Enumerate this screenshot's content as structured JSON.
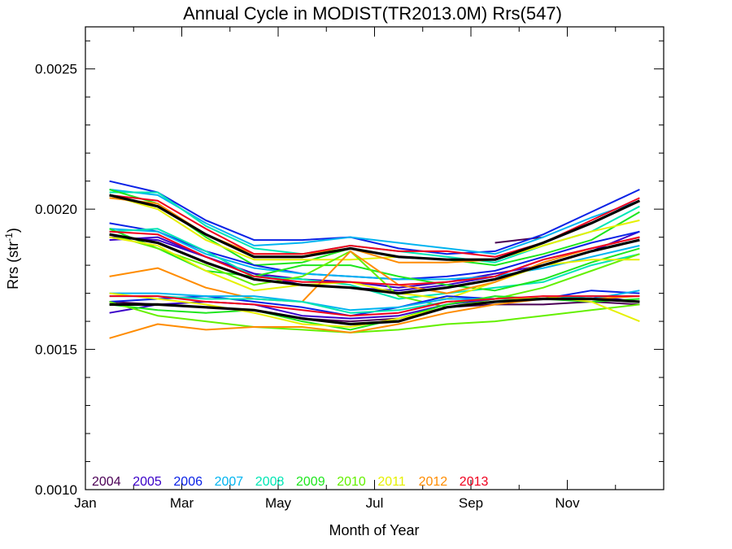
{
  "chart_data": {
    "type": "line",
    "title": "Annual Cycle in MODIST(TR2013.0M) Rrs(547)",
    "xlabel": "Month of Year",
    "ylabel": {
      "base": "Rrs (str",
      "sup": "-1",
      "close": ")"
    },
    "x_months": [
      1.5,
      2.5,
      3.5,
      4.5,
      5.5,
      6.5,
      7.5,
      8.5,
      9.5,
      10.5,
      11.5,
      12.5
    ],
    "xlim": [
      1,
      13
    ],
    "ylim": [
      0.001,
      0.00265
    ],
    "x_ticks": [
      {
        "label": "Jan",
        "value": 1
      },
      {
        "label": "Mar",
        "value": 3
      },
      {
        "label": "May",
        "value": 5
      },
      {
        "label": "Jul",
        "value": 7
      },
      {
        "label": "Sep",
        "value": 9
      },
      {
        "label": "Nov",
        "value": 11
      }
    ],
    "y_ticks": [
      {
        "label": "0.0010",
        "value": 0.001
      },
      {
        "label": "0.0015",
        "value": 0.0015
      },
      {
        "label": "0.0020",
        "value": 0.002
      },
      {
        "label": "0.0025",
        "value": 0.0025
      }
    ],
    "legend": [
      {
        "name": "2004",
        "color": "#4b0055"
      },
      {
        "name": "2005",
        "color": "#3a00c8"
      },
      {
        "name": "2006",
        "color": "#0a22e6"
      },
      {
        "name": "2007",
        "color": "#00b4f0"
      },
      {
        "name": "2008",
        "color": "#00e6b4"
      },
      {
        "name": "2009",
        "color": "#1ee61e"
      },
      {
        "name": "2010",
        "color": "#64f000"
      },
      {
        "name": "2011",
        "color": "#e6f000"
      },
      {
        "name": "2012",
        "color": "#ff8c00"
      },
      {
        "name": "2013",
        "color": "#f0001e"
      }
    ],
    "legend_position": "bottom-left",
    "series": [
      {
        "name": "2004",
        "color": "#4b0055",
        "group": "mid",
        "values": [
          null,
          null,
          null,
          null,
          null,
          null,
          null,
          null,
          0.00188,
          0.0019,
          null,
          null
        ]
      },
      {
        "name": "2005",
        "color": "#3a00c8",
        "group": "high",
        "values": [
          0.00189,
          0.0019,
          0.00183,
          0.00177,
          0.00175,
          0.00174,
          0.00172,
          0.00174,
          0.00177,
          0.0018,
          0.00185,
          0.00192
        ]
      },
      {
        "name": "2006",
        "color": "#0a22e6",
        "group": "high",
        "values": [
          0.0021,
          0.00206,
          0.00196,
          0.00189,
          0.00189,
          0.0019,
          0.00186,
          0.00184,
          0.00185,
          0.00191,
          0.00199,
          0.00207
        ]
      },
      {
        "name": "2007",
        "color": "#00b4f0",
        "group": "high",
        "values": [
          0.00207,
          0.00205,
          0.00195,
          0.00187,
          0.00188,
          0.0019,
          0.00188,
          0.00186,
          0.00184,
          0.0019,
          0.00197,
          0.00203
        ]
      },
      {
        "name": "2008",
        "color": "#00e6b4",
        "group": "high",
        "values": [
          0.00206,
          0.00206,
          0.00194,
          0.00186,
          0.00184,
          0.00187,
          0.00185,
          0.00183,
          0.00181,
          0.00187,
          0.00192,
          0.00201
        ]
      },
      {
        "name": "2009",
        "color": "#1ee61e",
        "group": "high",
        "values": [
          0.00207,
          0.00202,
          0.0019,
          0.0018,
          0.00181,
          0.00186,
          0.00183,
          0.00182,
          0.0018,
          0.00184,
          0.00189,
          0.00199
        ]
      },
      {
        "name": "2011",
        "color": "#e6f000",
        "group": "high",
        "values": [
          0.00205,
          0.002,
          0.00189,
          0.00182,
          0.00182,
          0.00182,
          0.00183,
          0.00182,
          0.00182,
          0.00187,
          0.00192,
          0.00196
        ]
      },
      {
        "name": "2012",
        "color": "#ff8c00",
        "group": "high",
        "values": [
          0.00204,
          0.00202,
          0.00191,
          0.00184,
          0.00184,
          0.00186,
          0.00181,
          0.00181,
          0.00182,
          0.00188,
          0.00195,
          0.00203
        ]
      },
      {
        "name": "2013",
        "color": "#f0001e",
        "group": "high",
        "values": [
          0.00205,
          0.00203,
          0.00193,
          0.00184,
          0.00184,
          0.00187,
          0.00185,
          0.00185,
          0.00183,
          0.00188,
          0.00196,
          0.00204
        ]
      },
      {
        "name": "2005",
        "color": "#3a00c8",
        "group": "mid",
        "values": [
          0.0019,
          0.00189,
          0.00183,
          0.00177,
          0.00173,
          0.00172,
          0.00171,
          0.00173,
          0.00176,
          0.00182,
          0.00186,
          0.0019
        ]
      },
      {
        "name": "2006",
        "color": "#0a22e6",
        "group": "mid",
        "values": [
          0.00195,
          0.00192,
          0.00185,
          0.0018,
          0.00177,
          0.00176,
          0.00175,
          0.00176,
          0.00178,
          0.00183,
          0.00188,
          0.00192
        ]
      },
      {
        "name": "2007",
        "color": "#00b4f0",
        "group": "mid",
        "values": [
          0.00193,
          0.00192,
          0.00184,
          0.00179,
          0.00177,
          0.00176,
          0.00175,
          0.00175,
          0.00176,
          0.00179,
          0.00183,
          0.00187
        ]
      },
      {
        "name": "2008",
        "color": "#00e6b4",
        "group": "mid",
        "values": [
          0.00192,
          0.00193,
          0.00185,
          0.00176,
          0.00175,
          0.00173,
          0.00168,
          0.0017,
          0.00172,
          0.00174,
          0.0018,
          0.00184
        ]
      },
      {
        "name": "2009",
        "color": "#1ee61e",
        "group": "mid",
        "values": [
          0.00193,
          0.00186,
          0.00178,
          0.00176,
          0.0018,
          0.0018,
          0.00176,
          0.00173,
          0.00171,
          0.00175,
          0.00181,
          0.00186
        ]
      },
      {
        "name": "2010",
        "color": "#64f000",
        "group": "mid",
        "values": [
          0.00191,
          0.00186,
          0.0018,
          0.00173,
          0.00176,
          0.00185,
          0.00169,
          0.00165,
          0.00168,
          0.00172,
          0.00178,
          0.00184
        ]
      },
      {
        "name": "2011",
        "color": "#e6f000",
        "group": "mid",
        "values": [
          0.0019,
          0.00187,
          0.00178,
          0.00171,
          0.00173,
          0.00174,
          0.0017,
          0.00168,
          0.00174,
          0.0018,
          0.00182,
          0.00182
        ]
      },
      {
        "name": "2012",
        "color": "#ff8c00",
        "group": "mid",
        "values": [
          0.00176,
          0.00179,
          0.00172,
          0.00168,
          0.00167,
          0.00185,
          0.00173,
          0.0017,
          0.00174,
          0.00181,
          0.00186,
          0.0019
        ]
      },
      {
        "name": "2013",
        "color": "#f0001e",
        "group": "mid",
        "values": [
          0.00192,
          0.00191,
          0.00183,
          0.00176,
          0.00174,
          0.00174,
          0.00173,
          0.00174,
          0.00176,
          0.00182,
          0.00186,
          0.0019
        ]
      },
      {
        "name": "2004",
        "color": "#4b0055",
        "group": "low",
        "values": [
          0.00167,
          0.00166,
          0.00165,
          0.00164,
          0.00161,
          0.0016,
          0.00161,
          0.00165,
          0.00166,
          0.00166,
          0.00167,
          0.00166
        ]
      },
      {
        "name": "2005",
        "color": "#3a00c8",
        "group": "low",
        "values": [
          0.00163,
          0.00166,
          0.00167,
          0.00166,
          0.00162,
          0.00161,
          0.00162,
          0.00166,
          0.00168,
          0.00168,
          0.00169,
          0.00167
        ]
      },
      {
        "name": "2006",
        "color": "#0a22e6",
        "group": "low",
        "values": [
          0.00167,
          0.00168,
          0.00169,
          0.00167,
          0.00165,
          0.00162,
          0.00165,
          0.00169,
          0.00168,
          0.00168,
          0.00171,
          0.0017
        ]
      },
      {
        "name": "2007",
        "color": "#00b4f0",
        "group": "low",
        "values": [
          0.0017,
          0.0017,
          0.00169,
          0.00169,
          0.00167,
          0.00164,
          0.00165,
          0.00168,
          0.00168,
          0.00168,
          0.00168,
          0.00171
        ]
      },
      {
        "name": "2008",
        "color": "#00e6b4",
        "group": "low",
        "values": [
          0.00169,
          0.00169,
          0.00168,
          0.00168,
          0.00167,
          0.00163,
          0.00164,
          0.00167,
          0.00168,
          0.00168,
          0.00169,
          0.00169
        ]
      },
      {
        "name": "2009",
        "color": "#1ee61e",
        "group": "low",
        "values": [
          0.00166,
          0.00164,
          0.00163,
          0.00164,
          0.0016,
          0.00157,
          0.00161,
          0.00166,
          0.00169,
          0.00168,
          0.00167,
          0.00168
        ]
      },
      {
        "name": "2010",
        "color": "#64f000",
        "group": "low",
        "values": [
          0.00167,
          0.00162,
          0.0016,
          0.00158,
          0.00157,
          0.00156,
          0.00157,
          0.00159,
          0.0016,
          0.00162,
          0.00164,
          0.00166
        ]
      },
      {
        "name": "2011",
        "color": "#e6f000",
        "group": "low",
        "values": [
          0.0017,
          0.00168,
          0.00166,
          0.00163,
          0.00159,
          0.00158,
          0.00161,
          0.00165,
          0.00167,
          0.00169,
          0.00167,
          0.0016
        ]
      },
      {
        "name": "2012",
        "color": "#ff8c00",
        "group": "low",
        "values": [
          0.00154,
          0.00159,
          0.00157,
          0.00158,
          0.00158,
          0.00156,
          0.00159,
          0.00163,
          0.00166,
          0.00168,
          0.00168,
          0.00169
        ]
      },
      {
        "name": "2013",
        "color": "#f0001e",
        "group": "low",
        "values": [
          0.00169,
          0.00169,
          0.00167,
          0.00166,
          0.00164,
          0.00162,
          0.00163,
          0.00167,
          0.00168,
          0.00169,
          0.00169,
          0.00169
        ]
      }
    ],
    "climatology": [
      {
        "color": "#000000",
        "values": [
          0.00205,
          0.00201,
          0.00191,
          0.00183,
          0.00183,
          0.00186,
          0.00183,
          0.00182,
          0.00182,
          0.00188,
          0.00195,
          0.00203
        ]
      },
      {
        "color": "#000000",
        "values": [
          0.00191,
          0.00188,
          0.00181,
          0.00175,
          0.00173,
          0.00172,
          0.0017,
          0.00172,
          0.00175,
          0.0018,
          0.00185,
          0.00189
        ]
      },
      {
        "color": "#000000",
        "values": [
          0.00166,
          0.00166,
          0.00165,
          0.00164,
          0.00161,
          0.00159,
          0.0016,
          0.00165,
          0.00167,
          0.00168,
          0.00168,
          0.00167
        ]
      }
    ],
    "grid": false
  }
}
